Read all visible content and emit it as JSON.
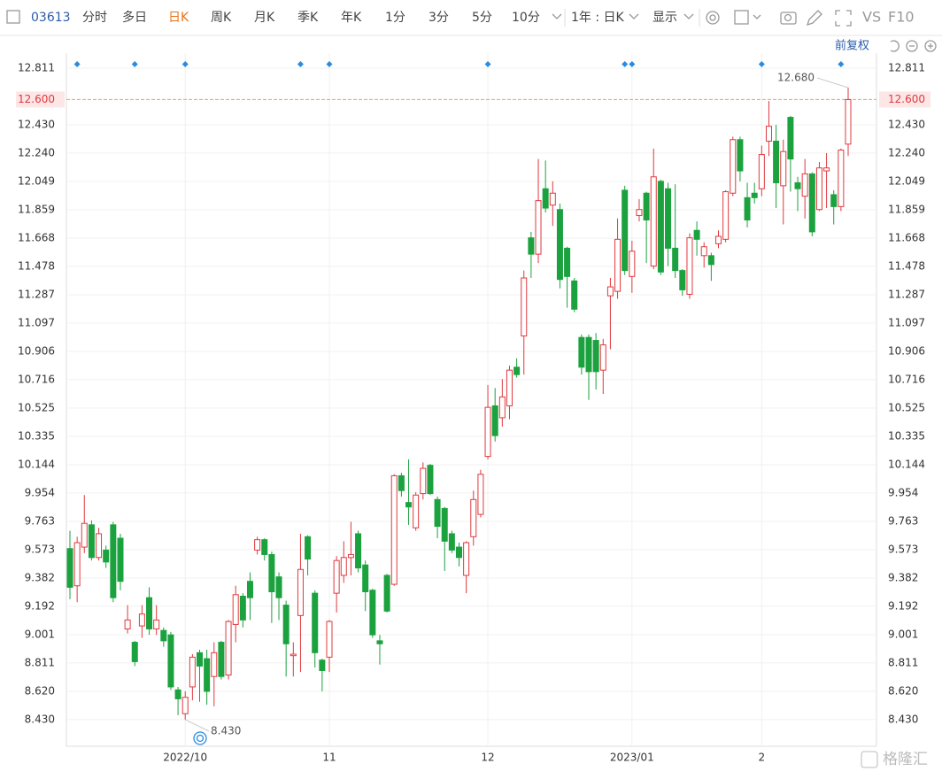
{
  "toolbar": {
    "code": "03613",
    "items": [
      "分时",
      "多日",
      "日K",
      "周K",
      "月K",
      "季K",
      "年K",
      "1分",
      "3分",
      "5分",
      "10分"
    ],
    "selected": 2,
    "period": "1年 : 日K",
    "display": "显示",
    "vs": "VS",
    "f10": "F10",
    "adjust": "前复权",
    "watermark": "格隆汇"
  },
  "chart_data": {
    "type": "candlestick",
    "categories": [
      null,
      null,
      null,
      null,
      null,
      null,
      null,
      null,
      null,
      null,
      null,
      null,
      null,
      null,
      null,
      null,
      "2022/10",
      null,
      null,
      null,
      null,
      null,
      null,
      null,
      null,
      null,
      null,
      null,
      null,
      null,
      null,
      null,
      null,
      null,
      null,
      null,
      "11",
      null,
      null,
      null,
      null,
      null,
      null,
      null,
      null,
      null,
      null,
      null,
      null,
      null,
      null,
      null,
      null,
      null,
      null,
      null,
      null,
      null,
      "12",
      null,
      null,
      null,
      null,
      null,
      null,
      null,
      null,
      null,
      null,
      null,
      null,
      null,
      null,
      null,
      null,
      null,
      null,
      null,
      "2023/01",
      null,
      null,
      null,
      null,
      null,
      null,
      null,
      null,
      null,
      null,
      null,
      null,
      null,
      null,
      null,
      null,
      null,
      "2",
      null,
      null,
      null,
      null,
      null,
      null,
      null,
      null,
      null,
      null,
      null,
      null
    ],
    "open": [
      9.58,
      9.33,
      9.59,
      9.74,
      9.52,
      9.57,
      9.74,
      9.65,
      9.04,
      8.95,
      9.06,
      9.25,
      9.04,
      9.03,
      9.0,
      8.63,
      8.47,
      8.65,
      8.88,
      8.84,
      8.72,
      8.95,
      8.73,
      9.07,
      9.26,
      9.36,
      9.57,
      9.64,
      9.54,
      9.39,
      9.2,
      8.86,
      9.13,
      9.66,
      9.28,
      8.83,
      8.85,
      9.28,
      9.4,
      9.52,
      9.68,
      9.47,
      9.3,
      8.96,
      9.4,
      9.34,
      10.07,
      9.89,
      9.72,
      9.95,
      10.14,
      9.91,
      9.85,
      9.68,
      9.59,
      9.4,
      9.66,
      9.81,
      10.2,
      10.54,
      10.46,
      10.54,
      10.8,
      11.01,
      11.67,
      11.56,
      12.0,
      11.89,
      11.86,
      11.6,
      11.38,
      11.0,
      11.0,
      10.98,
      10.78,
      11.28,
      11.31,
      11.99,
      11.41,
      11.82,
      11.97,
      11.48,
      12.05,
      12.0,
      11.6,
      11.45,
      11.29,
      11.72,
      11.55,
      11.55,
      11.63,
      11.66,
      11.97,
      12.33,
      11.94,
      11.97,
      12.0,
      12.32,
      12.32,
      12.02,
      12.48,
      12.04,
      11.95,
      12.1,
      11.86,
      12.12,
      11.96,
      11.88,
      12.3
    ],
    "high": [
      9.7,
      9.66,
      9.94,
      9.77,
      9.72,
      9.6,
      9.76,
      9.68,
      9.2,
      8.96,
      9.2,
      9.32,
      9.2,
      9.05,
      9.02,
      8.65,
      8.62,
      8.87,
      8.9,
      8.9,
      8.95,
      8.96,
      9.1,
      9.33,
      9.28,
      9.42,
      9.66,
      9.65,
      9.56,
      9.42,
      9.23,
      8.95,
      9.68,
      9.67,
      9.3,
      8.84,
      9.1,
      9.53,
      9.63,
      9.76,
      9.7,
      9.5,
      9.31,
      9.0,
      9.41,
      10.08,
      10.09,
      10.18,
      9.96,
      10.16,
      10.15,
      9.93,
      9.86,
      9.7,
      9.62,
      9.63,
      9.97,
      10.11,
      10.68,
      10.66,
      10.72,
      10.81,
      10.86,
      11.45,
      11.71,
      12.2,
      12.19,
      12.05,
      11.9,
      11.61,
      11.4,
      11.02,
      11.02,
      11.03,
      10.99,
      11.4,
      11.8,
      12.02,
      11.65,
      11.93,
      11.98,
      12.27,
      12.06,
      12.04,
      12.03,
      11.46,
      11.7,
      11.78,
      11.64,
      11.57,
      11.72,
      11.99,
      12.35,
      12.35,
      12.04,
      12.04,
      12.29,
      12.59,
      12.43,
      12.33,
      12.49,
      12.08,
      12.2,
      12.11,
      12.18,
      12.24,
      11.99,
      12.27,
      12.68
    ],
    "low": [
      9.24,
      9.22,
      9.55,
      9.5,
      9.5,
      9.45,
      9.22,
      9.3,
      9.01,
      8.79,
      8.98,
      9.0,
      9.0,
      8.92,
      8.63,
      8.46,
      8.43,
      8.56,
      8.55,
      8.53,
      8.52,
      8.7,
      8.7,
      8.95,
      9.05,
      9.1,
      9.54,
      9.5,
      9.08,
      9.1,
      8.72,
      8.72,
      8.75,
      9.4,
      8.78,
      8.62,
      8.75,
      9.15,
      9.35,
      9.4,
      9.42,
      9.16,
      8.98,
      8.8,
      9.15,
      9.33,
      9.93,
      9.74,
      9.7,
      9.91,
      9.94,
      9.65,
      9.43,
      9.55,
      9.46,
      9.28,
      9.6,
      9.79,
      10.18,
      10.3,
      10.4,
      10.45,
      10.73,
      10.75,
      11.4,
      11.5,
      11.84,
      11.75,
      11.33,
      11.2,
      11.17,
      10.75,
      10.58,
      10.65,
      10.62,
      10.92,
      11.26,
      11.42,
      11.3,
      11.78,
      11.5,
      11.46,
      11.42,
      11.48,
      11.4,
      11.28,
      11.26,
      11.55,
      11.47,
      11.38,
      11.6,
      11.64,
      11.95,
      12.05,
      11.74,
      11.9,
      11.95,
      12.22,
      11.87,
      11.76,
      11.98,
      11.85,
      11.8,
      11.68,
      11.85,
      11.87,
      11.76,
      11.85,
      12.22
    ],
    "close": [
      9.32,
      9.62,
      9.75,
      9.52,
      9.68,
      9.49,
      9.25,
      9.36,
      9.1,
      8.82,
      9.14,
      9.04,
      9.1,
      8.96,
      8.65,
      8.57,
      8.58,
      8.85,
      8.79,
      8.62,
      8.88,
      8.72,
      9.09,
      9.27,
      9.1,
      9.25,
      9.64,
      9.54,
      9.29,
      9.25,
      8.94,
      8.87,
      9.44,
      9.51,
      8.88,
      8.76,
      9.09,
      9.5,
      9.52,
      9.54,
      9.45,
      9.29,
      9.0,
      8.94,
      9.16,
      10.07,
      9.97,
      9.86,
      9.94,
      10.12,
      9.95,
      9.73,
      9.63,
      9.57,
      9.52,
      9.62,
      9.91,
      10.08,
      10.53,
      10.34,
      10.6,
      10.78,
      10.75,
      11.4,
      11.56,
      11.92,
      11.87,
      11.97,
      11.39,
      11.41,
      11.19,
      10.8,
      10.77,
      10.77,
      10.95,
      11.34,
      11.66,
      11.45,
      11.58,
      11.86,
      11.79,
      12.08,
      11.44,
      11.6,
      11.45,
      11.32,
      11.67,
      11.66,
      11.61,
      11.49,
      11.68,
      11.98,
      12.33,
      12.12,
      11.79,
      11.94,
      12.23,
      12.42,
      12.04,
      12.25,
      12.2,
      12.0,
      12.1,
      11.71,
      12.14,
      12.14,
      11.88,
      12.26,
      12.6
    ],
    "up_color": "#e0393e",
    "down_color": "#1ba23f",
    "ylim": [
      8.251,
      12.912
    ],
    "yticks": [
      {
        "value": 8.43,
        "label": "8.430"
      },
      {
        "value": 8.62,
        "label": "8.620"
      },
      8.811,
      9.001,
      9.192,
      9.382,
      9.573,
      9.763,
      9.954,
      10.144,
      10.335,
      10.525,
      10.716,
      10.906,
      11.097,
      11.287,
      11.478,
      11.668,
      11.859,
      12.049,
      {
        "value": 12.24,
        "label": "12.240"
      },
      {
        "value": 12.43,
        "label": "12.430"
      },
      12.811
    ],
    "current_price": {
      "value": 12.6,
      "label": "12.600"
    },
    "max_label": {
      "index": 108,
      "value": 12.68,
      "label": "12.680"
    },
    "min_label": {
      "index": 16,
      "value": 8.43,
      "label": "8.430"
    },
    "events": [
      1,
      9,
      16,
      32,
      36,
      58,
      77,
      78,
      96,
      107
    ],
    "grid": true
  }
}
